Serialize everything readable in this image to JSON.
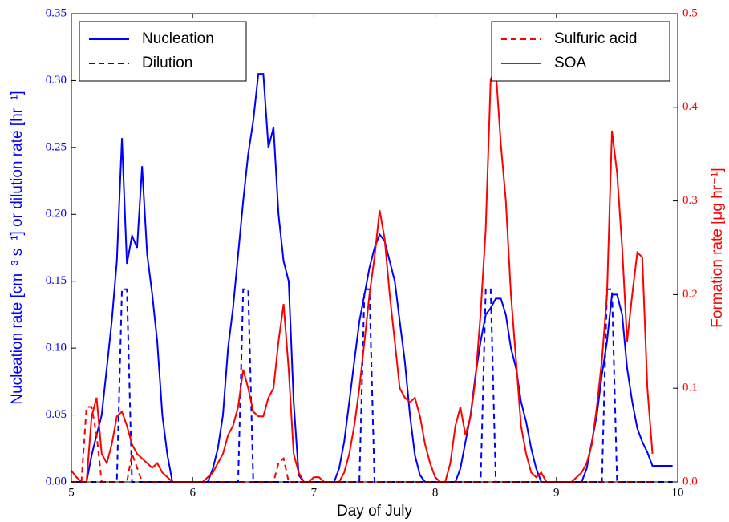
{
  "chart_data": {
    "type": "line",
    "xlabel": "Day of July",
    "ylabel": "Nucleation rate [cm⁻³ s⁻¹] or dilution rate [hr⁻¹]",
    "y2label": "Formation rate [μg hr⁻¹]",
    "xlim": [
      5,
      10
    ],
    "xticks": [
      5,
      6,
      7,
      8,
      9,
      10
    ],
    "ylim": [
      0,
      0.35
    ],
    "yticks": [
      {
        "value": 0,
        "label": "0.00"
      },
      {
        "value": 0.05,
        "label": "0.05"
      },
      {
        "value": 0.1,
        "label": "0.10"
      },
      {
        "value": 0.15,
        "label": "0.15"
      },
      {
        "value": 0.2,
        "label": "0.20"
      },
      {
        "value": 0.25,
        "label": "0.25"
      },
      {
        "value": 0.3,
        "label": "0.30"
      },
      {
        "value": 0.35,
        "label": "0.35"
      }
    ],
    "y2lim": [
      0,
      0.5
    ],
    "y2ticks": [
      {
        "value": 0,
        "label": "0.0"
      },
      0.1,
      0.2,
      0.3,
      0.4,
      0.5
    ],
    "ycolor": "#0000ff",
    "y2color": "#ff0000",
    "x": [
      5,
      5.042,
      5.083,
      5.125,
      5.167,
      5.208,
      5.25,
      5.292,
      5.333,
      5.375,
      5.417,
      5.458,
      5.5,
      5.542,
      5.583,
      5.625,
      5.667,
      5.708,
      5.75,
      5.792,
      5.833,
      5.875,
      5.917,
      5.958,
      6,
      6.042,
      6.083,
      6.125,
      6.167,
      6.208,
      6.25,
      6.292,
      6.333,
      6.375,
      6.417,
      6.458,
      6.5,
      6.542,
      6.583,
      6.625,
      6.667,
      6.708,
      6.75,
      6.792,
      6.833,
      6.875,
      6.917,
      6.958,
      7,
      7.042,
      7.083,
      7.125,
      7.167,
      7.208,
      7.25,
      7.292,
      7.333,
      7.375,
      7.417,
      7.458,
      7.5,
      7.542,
      7.583,
      7.625,
      7.667,
      7.708,
      7.75,
      7.792,
      7.833,
      7.875,
      7.917,
      7.958,
      8,
      8.042,
      8.083,
      8.125,
      8.167,
      8.208,
      8.25,
      8.292,
      8.333,
      8.375,
      8.417,
      8.458,
      8.5,
      8.542,
      8.583,
      8.625,
      8.667,
      8.708,
      8.75,
      8.792,
      8.833,
      8.875,
      8.917,
      8.958,
      9,
      9.042,
      9.083,
      9.125,
      9.167,
      9.208,
      9.25,
      9.292,
      9.333,
      9.375,
      9.417,
      9.458,
      9.5,
      9.542,
      9.583,
      9.625,
      9.667,
      9.708,
      9.75,
      9.792,
      9.833,
      9.875,
      9.917,
      9.958
    ],
    "series": [
      {
        "name": "Nucleation",
        "color": "#0000ff",
        "dash": false,
        "axis": "y",
        "values": [
          0,
          0,
          0,
          0,
          0.02,
          0.035,
          0.05,
          0.085,
          0.12,
          0.165,
          0.257,
          0.163,
          0.184,
          0.175,
          0.236,
          0.17,
          0.14,
          0.105,
          0.05,
          0.02,
          0,
          0,
          0,
          0,
          0,
          0,
          0,
          0,
          0.01,
          0.025,
          0.05,
          0.1,
          0.13,
          0.17,
          0.21,
          0.245,
          0.27,
          0.305,
          0.305,
          0.25,
          0.265,
          0.2,
          0.165,
          0.15,
          0.06,
          0.005,
          0,
          0,
          0,
          0,
          0,
          0,
          0,
          0.01,
          0.03,
          0.06,
          0.09,
          0.12,
          0.14,
          0.16,
          0.175,
          0.185,
          0.18,
          0.165,
          0.15,
          0.12,
          0.09,
          0.05,
          0.02,
          0.005,
          0,
          0,
          0,
          0,
          0,
          0,
          0,
          0.01,
          0.03,
          0.05,
          0.08,
          0.105,
          0.125,
          0.13,
          0.137,
          0.137,
          0.125,
          0.1,
          0.085,
          0.06,
          0.045,
          0.025,
          0.01,
          0,
          0,
          0,
          0,
          0,
          0,
          0,
          0,
          0,
          0.01,
          0.03,
          0.05,
          0.08,
          0.105,
          0.14,
          0.14,
          0.125,
          0.085,
          0.06,
          0.04,
          0.03,
          0.022,
          0.012,
          0.012,
          0.012,
          0.012,
          0.012
        ]
      },
      {
        "name": "Dilution",
        "color": "#0000ff",
        "dash": true,
        "axis": "y",
        "values": [
          0,
          0,
          0,
          0,
          0,
          0,
          0,
          0,
          0,
          0,
          0.144,
          0.144,
          0,
          0,
          0,
          0,
          0,
          0,
          0,
          0,
          0,
          0,
          0,
          0,
          0,
          0,
          0,
          0,
          0,
          0,
          0,
          0,
          0,
          0,
          0.144,
          0.144,
          0,
          0,
          0,
          0,
          0,
          0,
          0,
          0,
          0,
          0,
          0,
          0,
          0,
          0,
          0,
          0,
          0,
          0,
          0,
          0,
          0,
          0,
          0.144,
          0.144,
          0,
          0,
          0,
          0,
          0,
          0,
          0,
          0,
          0,
          0,
          0,
          0,
          0,
          0,
          0,
          0,
          0,
          0,
          0,
          0,
          0,
          0,
          0.144,
          0.144,
          0,
          0,
          0,
          0,
          0,
          0,
          0,
          0,
          0,
          0,
          0,
          0,
          0,
          0,
          0,
          0,
          0,
          0,
          0,
          0,
          0,
          0,
          0.144,
          0.144,
          0,
          0,
          0,
          0,
          0,
          0,
          0,
          0,
          0,
          0,
          0,
          0
        ]
      },
      {
        "name": "Sulfuric acid",
        "color": "#ff0000",
        "dash": true,
        "axis": "y2",
        "values": [
          0,
          0,
          0,
          0.08,
          0.08,
          0.05,
          0,
          0,
          0,
          0,
          0,
          0,
          0.03,
          0.015,
          0,
          0,
          0,
          0,
          0,
          0,
          0,
          0,
          0,
          0,
          0,
          0,
          0,
          0,
          0,
          0,
          0,
          0,
          0,
          0,
          0,
          0,
          0,
          0,
          0,
          0,
          0,
          0.02,
          0.025,
          0,
          0,
          0,
          0,
          0,
          0,
          0,
          0,
          0,
          0,
          0,
          0,
          0,
          0,
          0,
          0,
          0,
          0,
          0,
          0,
          0,
          0,
          0,
          0,
          0,
          0,
          0,
          0,
          0,
          0,
          0,
          0,
          0,
          0,
          0,
          0,
          0,
          0,
          0,
          0,
          0,
          0,
          0,
          0,
          0,
          0,
          0,
          0,
          0,
          0,
          0,
          0,
          0,
          0,
          0,
          0,
          0,
          0,
          0,
          0,
          0,
          0,
          0,
          0,
          0,
          0,
          0,
          0,
          0,
          0,
          0,
          0,
          0,
          null,
          null,
          null,
          null
        ]
      },
      {
        "name": "SOA",
        "color": "#ff0000",
        "dash": false,
        "axis": "y2",
        "values": [
          0.012,
          0.005,
          0,
          0,
          0.07,
          0.09,
          0.03,
          0.02,
          0.04,
          0.07,
          0.075,
          0.06,
          0.04,
          0.03,
          0.025,
          0.02,
          0.015,
          0.02,
          0.01,
          0.005,
          0,
          0,
          0,
          0,
          0,
          0,
          0,
          0.005,
          0.01,
          0.02,
          0.03,
          0.05,
          0.06,
          0.08,
          0.12,
          0.1,
          0.075,
          0.07,
          0.07,
          0.09,
          0.1,
          0.15,
          0.19,
          0.12,
          0.03,
          0.01,
          0,
          0,
          0.005,
          0.005,
          0,
          0,
          0,
          0,
          0.01,
          0.03,
          0.06,
          0.1,
          0.15,
          0.2,
          0.24,
          0.29,
          0.26,
          0.2,
          0.15,
          0.1,
          0.09,
          0.085,
          0.09,
          0.07,
          0.04,
          0.02,
          0.005,
          0,
          0,
          0.02,
          0.06,
          0.08,
          0.05,
          0.07,
          0.11,
          0.18,
          0.27,
          0.43,
          0.44,
          0.36,
          0.3,
          0.2,
          0.13,
          0.06,
          0.03,
          0.01,
          0.005,
          0.01,
          0,
          0,
          0,
          0,
          0,
          0,
          0.005,
          0.01,
          0.02,
          0.04,
          0.08,
          0.13,
          0.2,
          0.375,
          0.33,
          0.25,
          0.15,
          0.2,
          0.245,
          0.24,
          0.1,
          0.03,
          null,
          null,
          null,
          null
        ]
      }
    ]
  }
}
